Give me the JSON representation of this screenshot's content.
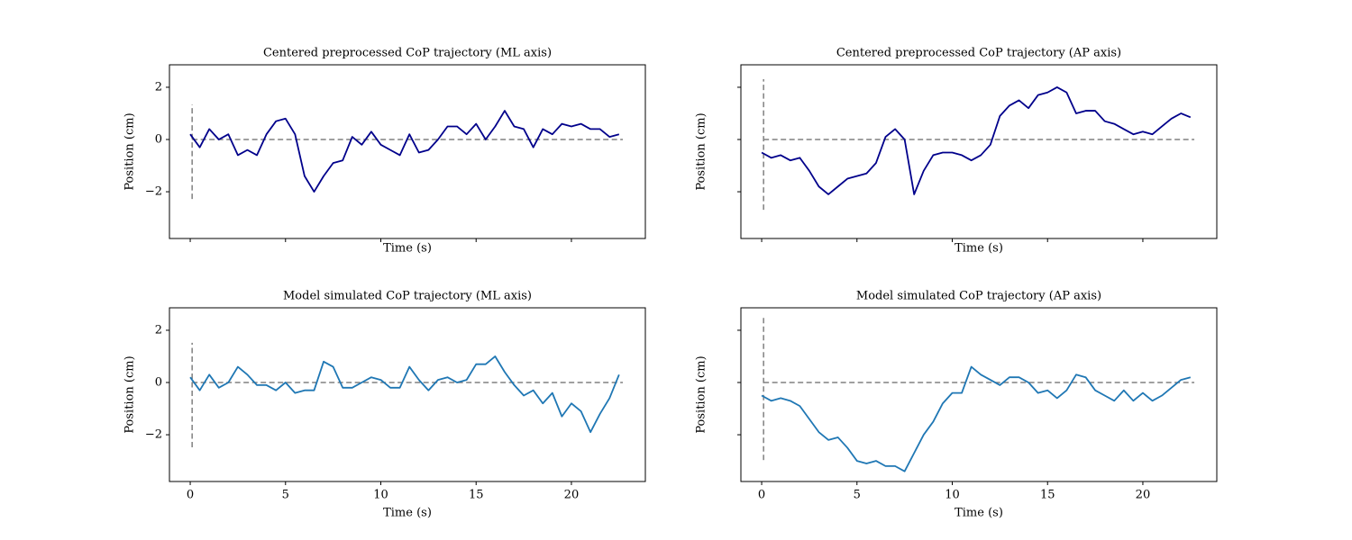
{
  "chart_data": [
    {
      "type": "line",
      "title": "Centered preprocessed CoP trajectory (ML axis)",
      "xlabel": "Time (s)",
      "ylabel": "Position (cm)",
      "x": [
        0,
        0.5,
        1,
        1.5,
        2,
        2.5,
        3,
        3.5,
        4,
        4.5,
        5,
        5.5,
        6,
        6.5,
        7,
        7.5,
        8,
        8.5,
        9,
        9.5,
        10,
        10.5,
        11,
        11.5,
        12,
        12.5,
        13,
        13.5,
        14,
        14.5,
        15,
        15.5,
        16,
        16.5,
        17,
        17.5,
        18,
        18.5,
        19,
        19.5,
        20,
        20.5,
        21,
        21.5,
        22,
        22.5
      ],
      "values": [
        0.2,
        -0.3,
        0.4,
        0.0,
        0.2,
        -0.6,
        -0.4,
        -0.6,
        0.2,
        0.7,
        0.8,
        0.2,
        -1.4,
        -2.0,
        -1.4,
        -0.9,
        -0.8,
        0.1,
        -0.2,
        0.3,
        -0.2,
        -0.4,
        -0.6,
        0.2,
        -0.5,
        -0.4,
        0.0,
        0.5,
        0.5,
        0.2,
        0.6,
        0.0,
        0.5,
        1.1,
        0.5,
        0.4,
        -0.3,
        0.4,
        0.2,
        0.6,
        0.5,
        0.6,
        0.4,
        0.4,
        0.1,
        0.2
      ],
      "color": "#00008b",
      "xlim": [
        -1.09,
        23.88
      ],
      "ylim": [
        -3.79,
        2.86
      ],
      "xticks": [
        0,
        5,
        10,
        15,
        20
      ],
      "xtick_labels": false,
      "yticks": [
        {
          "value": -2,
          "label": "−2"
        },
        0,
        2
      ],
      "ytick_labels": true,
      "hline": {
        "y": 0,
        "xmin": 0.1,
        "xmax": 22.7
      },
      "vline": {
        "x": 0.1,
        "ymin": -2.28,
        "ymax": 1.34
      }
    },
    {
      "type": "line",
      "title": "Centered preprocessed CoP trajectory (AP axis)",
      "xlabel": "Time (s)",
      "ylabel": "Position (cm)",
      "x": [
        0,
        0.5,
        1,
        1.5,
        2,
        2.5,
        3,
        3.5,
        4,
        4.5,
        5,
        5.5,
        6,
        6.5,
        7,
        7.5,
        8,
        8.5,
        9,
        9.5,
        10,
        10.5,
        11,
        11.5,
        12,
        12.5,
        13,
        13.5,
        14,
        14.5,
        15,
        15.5,
        16,
        16.5,
        17,
        17.5,
        18,
        18.5,
        19,
        19.5,
        20,
        20.5,
        21,
        21.5,
        22,
        22.5
      ],
      "values": [
        -0.5,
        -0.7,
        -0.6,
        -0.8,
        -0.7,
        -1.2,
        -1.8,
        -2.1,
        -1.8,
        -1.5,
        -1.4,
        -1.3,
        -0.9,
        0.1,
        0.4,
        0.0,
        -2.1,
        -1.2,
        -0.6,
        -0.5,
        -0.5,
        -0.6,
        -0.8,
        -0.6,
        -0.2,
        0.9,
        1.3,
        1.5,
        1.2,
        1.7,
        1.8,
        2.0,
        1.8,
        1.0,
        1.1,
        1.1,
        0.7,
        0.6,
        0.4,
        0.2,
        0.3,
        0.2,
        0.5,
        0.8,
        1.0,
        0.85
      ],
      "color": "#00008b",
      "xlim": [
        -1.09,
        23.88
      ],
      "ylim": [
        -3.79,
        2.86
      ],
      "xticks": [
        0,
        5,
        10,
        15,
        20
      ],
      "xtick_labels": false,
      "yticks": [
        -2,
        0,
        2
      ],
      "ytick_labels": false,
      "hline": {
        "y": 0,
        "xmin": 0.1,
        "xmax": 22.7
      },
      "vline": {
        "x": 0.1,
        "ymin": -2.69,
        "ymax": 2.31
      }
    },
    {
      "type": "line",
      "title": "Model simulated CoP trajectory (ML axis)",
      "xlabel": "Time (s)",
      "ylabel": "Position (cm)",
      "x": [
        0,
        0.5,
        1,
        1.5,
        2,
        2.5,
        3,
        3.5,
        4,
        4.5,
        5,
        5.5,
        6,
        6.5,
        7,
        7.5,
        8,
        8.5,
        9,
        9.5,
        10,
        10.5,
        11,
        11.5,
        12,
        12.5,
        13,
        13.5,
        14,
        14.5,
        15,
        15.5,
        16,
        16.5,
        17,
        17.5,
        18,
        18.5,
        19,
        19.5,
        20,
        20.5,
        21,
        21.5,
        22,
        22.5
      ],
      "values": [
        0.2,
        -0.3,
        0.3,
        -0.2,
        0.0,
        0.6,
        0.3,
        -0.1,
        -0.1,
        -0.3,
        0.0,
        -0.4,
        -0.3,
        -0.3,
        0.8,
        0.6,
        -0.2,
        -0.2,
        0.0,
        0.2,
        0.1,
        -0.2,
        -0.2,
        0.6,
        0.1,
        -0.3,
        0.1,
        0.2,
        0.0,
        0.1,
        0.7,
        0.7,
        1.0,
        0.4,
        -0.1,
        -0.5,
        -0.3,
        -0.8,
        -0.4,
        -1.3,
        -0.8,
        -1.1,
        -1.9,
        -1.2,
        -0.6,
        0.3
      ],
      "color": "#1f77b4",
      "xlim": [
        -1.09,
        23.88
      ],
      "ylim": [
        -3.79,
        2.86
      ],
      "xticks": [
        0,
        5,
        10,
        15,
        20
      ],
      "xtick_labels": true,
      "yticks": [
        {
          "value": -2,
          "label": "−2"
        },
        0,
        2
      ],
      "ytick_labels": true,
      "hline": {
        "y": 0,
        "xmin": 0.1,
        "xmax": 22.7
      },
      "vline": {
        "x": 0.1,
        "ymin": -2.48,
        "ymax": 1.52
      }
    },
    {
      "type": "line",
      "title": "Model simulated CoP trajectory (AP axis)",
      "xlabel": "Time (s)",
      "ylabel": "Position (cm)",
      "x": [
        0,
        0.5,
        1,
        1.5,
        2,
        2.5,
        3,
        3.5,
        4,
        4.5,
        5,
        5.5,
        6,
        6.5,
        7,
        7.5,
        8,
        8.5,
        9,
        9.5,
        10,
        10.5,
        11,
        11.5,
        12,
        12.5,
        13,
        13.5,
        14,
        14.5,
        15,
        15.5,
        16,
        16.5,
        17,
        17.5,
        18,
        18.5,
        19,
        19.5,
        20,
        20.5,
        21,
        21.5,
        22,
        22.5
      ],
      "values": [
        -0.5,
        -0.7,
        -0.6,
        -0.7,
        -0.9,
        -1.4,
        -1.9,
        -2.2,
        -2.1,
        -2.5,
        -3.0,
        -3.1,
        -3.0,
        -3.2,
        -3.2,
        -3.4,
        -2.7,
        -2.0,
        -1.5,
        -0.8,
        -0.4,
        -0.4,
        0.6,
        0.3,
        0.1,
        -0.1,
        0.2,
        0.2,
        0.0,
        -0.4,
        -0.3,
        -0.6,
        -0.3,
        0.3,
        0.2,
        -0.3,
        -0.5,
        -0.7,
        -0.3,
        -0.7,
        -0.4,
        -0.7,
        -0.5,
        -0.2,
        0.1,
        0.2
      ],
      "color": "#1f77b4",
      "xlim": [
        -1.09,
        23.88
      ],
      "ylim": [
        -3.79,
        2.86
      ],
      "xticks": [
        0,
        5,
        10,
        15,
        20
      ],
      "xtick_labels": true,
      "yticks": [
        -2,
        0,
        2
      ],
      "ytick_labels": false,
      "hline": {
        "y": 0,
        "xmin": 0.1,
        "xmax": 22.7
      },
      "vline": {
        "x": 0.1,
        "ymin": -2.97,
        "ymax": 2.59
      }
    }
  ]
}
